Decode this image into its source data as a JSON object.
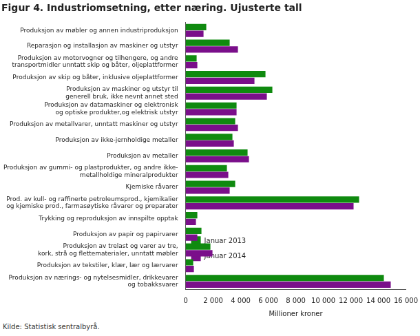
{
  "chart_data": {
    "type": "bar",
    "orientation": "horizontal",
    "title": "Figur 4. Industriomsetning, etter næring. Ujusterte tall",
    "source": "Kilde: Statistisk sentralbyrå.",
    "x_label": "Millioner kroner",
    "categories": [
      "Produksjon av møbler og annen industriproduksjon",
      "Reparasjon og installasjon av maskiner og utstyr",
      "Produksjon av motorvogner og tilhengere, og andre\ntransportmidler unntatt skip og båter, oljeplattformer",
      "Produksjon av skip og båter, inklusive oljeplattformer",
      "Produksjon av maskiner og utstyr til\ngenerell bruk, ikke nevnt annet sted",
      "Produksjon av datamaskiner og elektronisk\nog optiske produkter,og elektrisk utstyr",
      "Produksjon av metallvarer, unntatt maskiner og utstyr",
      "Produksjon av ikke-jernholdige metaller",
      "Produksjon av metaller",
      "Produksjon av gummi- og plastprodukter, og andre ikke-\nmetallholdige mineralprodukter",
      "Kjemiske råvarer",
      "Prod. av kull- og raffinerte petroleumsprod., kjemikalier\nog kjemiske prod., farmasøytiske råvarer og preparater",
      "Trykking og reproduksjon av innspilte opptak",
      "Produksjon av papir og papirvarer",
      "Produksjon av trelast og varer av tre,\nkork, strå og flettematerialer, unntatt møbler",
      "Produksjon av tekstiler, klær, lær og lærvarer",
      "Produksjon av nærings- og nytelsesmidler, drikkevarer\nog tobakksvarer"
    ],
    "series": [
      {
        "name": "Januar 2013",
        "color": "#0f8a0f",
        "values": [
          1500,
          3200,
          800,
          5800,
          6300,
          3700,
          3600,
          3400,
          4500,
          3000,
          3600,
          12600,
          850,
          1150,
          1800,
          550,
          14400
        ]
      },
      {
        "name": "Januar 2014",
        "color": "#7a0f8a",
        "values": [
          1300,
          3800,
          850,
          5000,
          5900,
          3700,
          3800,
          3500,
          4600,
          3100,
          3200,
          12200,
          750,
          850,
          1950,
          600,
          14900
        ]
      }
    ],
    "xlim": [
      0,
      16000
    ],
    "xticks": [
      0,
      {
        "value": 2000,
        "label": "2 000"
      },
      {
        "value": 4000,
        "label": "4 000"
      },
      {
        "value": 6000,
        "label": "6 000"
      },
      {
        "value": 8000,
        "label": "8 000"
      },
      {
        "value": 10000,
        "label": "10 000"
      },
      {
        "value": 12000,
        "label": "12 000"
      },
      {
        "value": 14000,
        "label": "14 000"
      },
      {
        "value": 16000,
        "label": "16 000"
      }
    ],
    "grid": false,
    "legend": "top-right"
  }
}
